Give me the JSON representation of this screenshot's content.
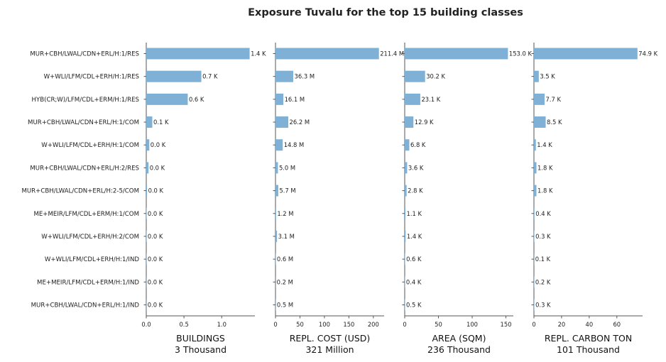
{
  "chart_data": {
    "type": "bar",
    "title": "Exposure Tuvalu for the top 15 building classes",
    "categories": [
      "MUR+CBH/LWAL/CDN+ERL/H:1/RES",
      "W+WLI/LFM/CDL+ERH/H:1/RES",
      "HYB(CR;W)/LFM/CDL+ERM/H:1/RES",
      "MUR+CBH/LWAL/CDN+ERL/H:1/COM",
      "W+WLI/LFM/CDL+ERH/H:1/COM",
      "MUR+CBH/LWAL/CDN+ERL/H:2/RES",
      "MUR+CBH/LWAL/CDN+ERL/H:2-5/COM",
      "ME+MEIR/LFM/CDL+ERM/H:1/COM",
      "W+WLI/LFM/CDL+ERH/H:2/COM",
      "W+WLI/LFM/CDL+ERH/H:1/IND",
      "ME+MEIR/LFM/CDL+ERM/H:1/IND",
      "MUR+CBH/LWAL/CDN+ERL/H:1/IND"
    ],
    "bar_color": "#7fb0d5",
    "panels": [
      {
        "xlabel": "BUILDINGS",
        "total": "3 Thousand",
        "values": [
          1.37,
          0.73,
          0.55,
          0.08,
          0.04,
          0.03,
          0.01,
          0.004,
          0.004,
          0.003,
          0.002,
          0.002
        ],
        "labels": [
          "1.4 K",
          "0.7 K",
          "0.6 K",
          "0.1 K",
          "0.0 K",
          "0.0 K",
          "0.0 K",
          "0.0 K",
          "0.0 K",
          "0.0 K",
          "0.0 K",
          "0.0 K"
        ],
        "xlim": [
          0,
          1.44
        ],
        "ticks": [
          0,
          0.5,
          1.0
        ],
        "tick_labels": [
          "0.0",
          "0.5",
          "1.0"
        ]
      },
      {
        "xlabel": "REPL. COST (USD)",
        "total": "321 Million",
        "values": [
          211.4,
          36.3,
          16.1,
          26.2,
          14.8,
          5.0,
          5.7,
          1.2,
          3.1,
          0.6,
          0.2,
          0.5
        ],
        "labels": [
          "211.4 M",
          "36.3 M",
          "16.1 M",
          "26.2 M",
          "14.8 M",
          "5.0 M",
          "5.7 M",
          "1.2 M",
          "3.1 M",
          "0.6 M",
          "0.2 M",
          "0.5 M"
        ],
        "xlim": [
          0,
          222
        ],
        "ticks": [
          0,
          50,
          100,
          150,
          200
        ],
        "tick_labels": [
          "0",
          "50",
          "100",
          "150",
          "200"
        ]
      },
      {
        "xlabel": "AREA (SQM)",
        "total": "236 Thousand",
        "values": [
          153.0,
          30.2,
          23.1,
          12.9,
          6.8,
          3.6,
          2.8,
          1.1,
          1.4,
          0.6,
          0.4,
          0.5
        ],
        "labels": [
          "153.0 K",
          "30.2 K",
          "23.1 K",
          "12.9 K",
          "6.8 K",
          "3.6 K",
          "2.8 K",
          "1.1 K",
          "1.4 K",
          "0.6 K",
          "0.4 K",
          "0.5 K"
        ],
        "xlim": [
          0,
          161
        ],
        "ticks": [
          0,
          50,
          100,
          150
        ],
        "tick_labels": [
          "0",
          "50",
          "100",
          "150"
        ]
      },
      {
        "xlabel": "REPL. CARBON TON",
        "total": "101 Thousand",
        "values": [
          74.9,
          3.5,
          7.7,
          8.5,
          1.4,
          1.8,
          1.8,
          0.4,
          0.3,
          0.1,
          0.2,
          0.3
        ],
        "labels": [
          "74.9 K",
          "3.5 K",
          "7.7 K",
          "8.5 K",
          "1.4 K",
          "1.8 K",
          "1.8 K",
          "0.4 K",
          "0.3 K",
          "0.1 K",
          "0.2 K",
          "0.3 K"
        ],
        "xlim": [
          0,
          78.6
        ],
        "ticks": [
          0,
          20,
          40,
          60
        ],
        "tick_labels": [
          "0",
          "20",
          "40",
          "60"
        ]
      }
    ]
  }
}
